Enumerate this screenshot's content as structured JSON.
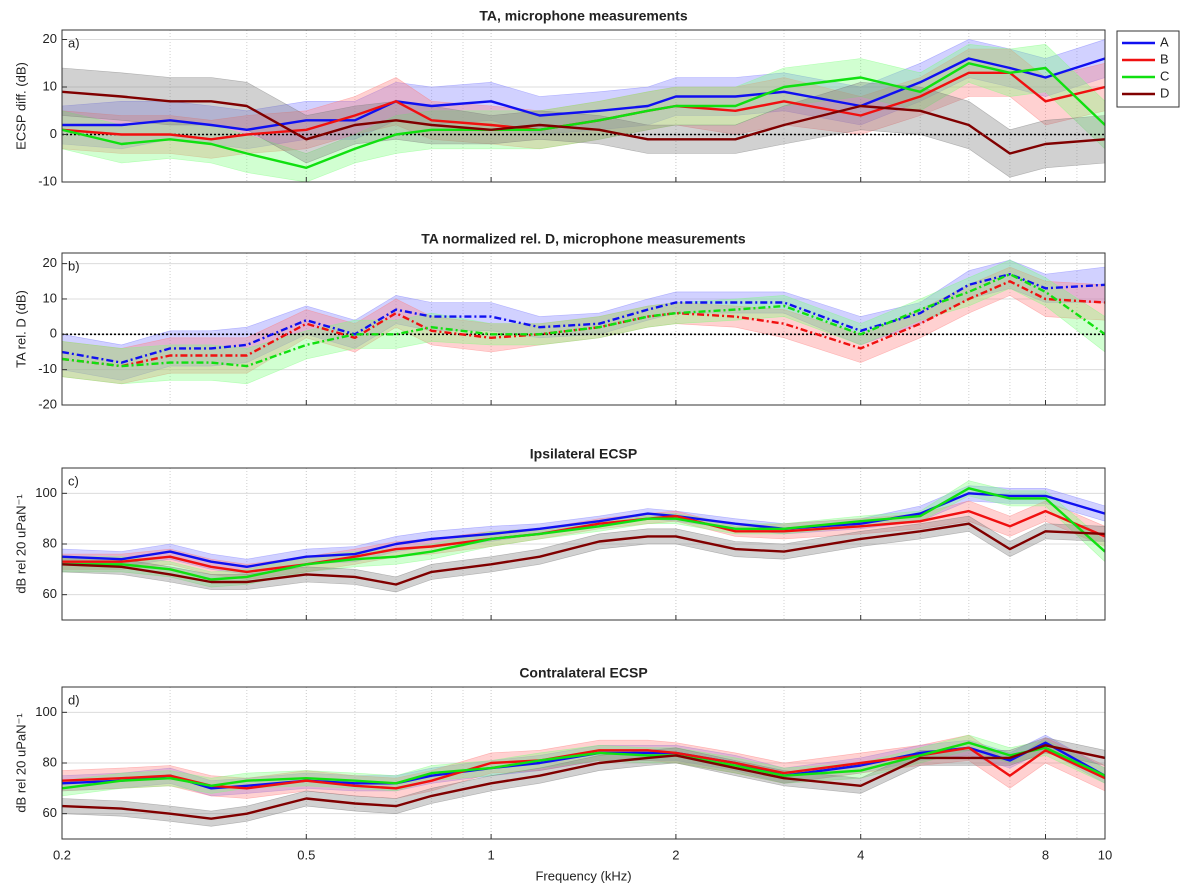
{
  "chart_data": [
    {
      "type": "line",
      "title": "TA, microphone measurements",
      "panel_label": "a)",
      "ylabel": "ECSP diff. (dB)",
      "log_x": true,
      "xlim": [
        0.2,
        10
      ],
      "xticks": [
        0.2,
        0.5,
        1,
        2,
        4,
        8,
        10
      ],
      "xminorticks": [
        0.3,
        0.4,
        0.6,
        0.7,
        0.8,
        0.9,
        3,
        5,
        6,
        7,
        9
      ],
      "ylim": [
        -10,
        22
      ],
      "yticks": [
        -10,
        0,
        10,
        20
      ],
      "grid": true,
      "zero_line": true,
      "line_style": "solid",
      "xtick_labels": false,
      "legend": "outside right",
      "x": [
        0.2,
        0.25,
        0.3,
        0.35,
        0.4,
        0.5,
        0.6,
        0.7,
        0.8,
        1,
        1.2,
        1.5,
        1.8,
        2,
        2.5,
        3,
        4,
        5,
        6,
        7,
        8,
        10
      ],
      "series": [
        {
          "name": "A",
          "color": "#1010f0",
          "band_color": "#7b7bff",
          "values": [
            2,
            2,
            3,
            2,
            1,
            3,
            3,
            7,
            6,
            7,
            4,
            5,
            6,
            8,
            8,
            9,
            6,
            11,
            16,
            14,
            12,
            16
          ],
          "errors": [
            4,
            5,
            4,
            4,
            4,
            4,
            4,
            4,
            4,
            4,
            4,
            4,
            4,
            4,
            4,
            4,
            4,
            4,
            4,
            4,
            4,
            4
          ]
        },
        {
          "name": "B",
          "color": "#f01010",
          "band_color": "#ff7b7b",
          "values": [
            1,
            0,
            0,
            -1,
            0,
            1,
            4,
            7,
            3,
            2,
            1,
            3,
            5,
            6,
            5,
            7,
            4,
            8,
            13,
            13,
            7,
            10
          ],
          "errors": [
            4,
            4,
            4,
            4,
            4,
            4,
            4,
            5,
            4,
            4,
            4,
            4,
            4,
            4,
            5,
            5,
            4,
            4,
            5,
            5,
            5,
            5
          ]
        },
        {
          "name": "C",
          "color": "#10e010",
          "band_color": "#7bff7b",
          "values": [
            1,
            -2,
            -1,
            -2,
            -4,
            -7,
            -3,
            0,
            1,
            1,
            1,
            3,
            5,
            6,
            6,
            10,
            12,
            9,
            15,
            13,
            14,
            2
          ],
          "errors": [
            4,
            4,
            4,
            4,
            4,
            3,
            3,
            4,
            4,
            4,
            4,
            4,
            4,
            4,
            4,
            4,
            4,
            4,
            4,
            5,
            5,
            5
          ]
        },
        {
          "name": "D",
          "color": "#800000",
          "band_color": "#7a7a7a",
          "values": [
            9,
            8,
            7,
            7,
            6,
            -1,
            2,
            3,
            2,
            1,
            2,
            1,
            -1,
            -1,
            -1,
            2,
            6,
            5,
            2,
            -4,
            -2,
            -1
          ],
          "errors": [
            5,
            5,
            5,
            5,
            5,
            5,
            4,
            4,
            4,
            3,
            3,
            3,
            3,
            3,
            3,
            4,
            5,
            5,
            5,
            5,
            5,
            5
          ]
        }
      ]
    },
    {
      "type": "line",
      "title": "TA normalized rel. D, microphone measurements",
      "panel_label": "b)",
      "ylabel": "TA rel. D (dB)",
      "log_x": true,
      "xlim": [
        0.2,
        10
      ],
      "xticks": [
        0.2,
        0.5,
        1,
        2,
        4,
        8,
        10
      ],
      "xminorticks": [
        0.3,
        0.4,
        0.6,
        0.7,
        0.8,
        0.9,
        3,
        5,
        6,
        7,
        9
      ],
      "ylim": [
        -20,
        23
      ],
      "yticks": [
        -20,
        -10,
        0,
        10,
        20
      ],
      "grid": true,
      "zero_line": true,
      "line_style": "dashed",
      "xtick_labels": false,
      "x": [
        0.2,
        0.25,
        0.3,
        0.35,
        0.4,
        0.5,
        0.6,
        0.7,
        0.8,
        1,
        1.2,
        1.5,
        1.8,
        2,
        2.5,
        3,
        4,
        5,
        6,
        7,
        8,
        10
      ],
      "series": [
        {
          "color": "#1010f0",
          "band_color": "#7b7bff",
          "values": [
            -5,
            -8,
            -4,
            -4,
            -3,
            4,
            0,
            7,
            5,
            5,
            2,
            3,
            7,
            9,
            9,
            9,
            1,
            6,
            14,
            17,
            13,
            14
          ],
          "errors": [
            5,
            5,
            5,
            5,
            5,
            4,
            4,
            4,
            4,
            4,
            3,
            3,
            3,
            3,
            3,
            3,
            4,
            3,
            4,
            4,
            4,
            5
          ]
        },
        {
          "color": "#f01010",
          "band_color": "#ff7b7b",
          "values": [
            -7,
            -9,
            -6,
            -6,
            -6,
            3,
            -1,
            6,
            1,
            -1,
            0,
            2,
            5,
            6,
            5,
            3,
            -4,
            3,
            10,
            15,
            10,
            9
          ],
          "errors": [
            5,
            5,
            5,
            5,
            5,
            4,
            4,
            4,
            4,
            4,
            3,
            3,
            3,
            3,
            3,
            4,
            4,
            4,
            4,
            4,
            5,
            5
          ]
        },
        {
          "color": "#10e010",
          "band_color": "#7bff7b",
          "values": [
            -7,
            -9,
            -8,
            -8,
            -9,
            -3,
            0,
            0,
            2,
            0,
            0,
            2,
            5,
            6,
            7,
            8,
            0,
            7,
            12,
            17,
            12,
            0
          ],
          "errors": [
            5,
            5,
            5,
            5,
            5,
            4,
            4,
            4,
            4,
            3,
            3,
            3,
            3,
            3,
            3,
            3,
            3,
            3,
            4,
            4,
            4,
            5
          ]
        }
      ]
    },
    {
      "type": "line",
      "title": "Ipsilateral ECSP",
      "panel_label": "c)",
      "ylabel": "dB rel 20 uPaN⁻¹",
      "log_x": true,
      "xlim": [
        0.2,
        10
      ],
      "xticks": [
        0.2,
        0.5,
        1,
        2,
        4,
        8,
        10
      ],
      "xminorticks": [
        0.3,
        0.4,
        0.6,
        0.7,
        0.8,
        0.9,
        3,
        5,
        6,
        7,
        9
      ],
      "ylim": [
        50,
        110
      ],
      "yticks": [
        60,
        80,
        100
      ],
      "grid": true,
      "zero_line": false,
      "line_style": "solid",
      "xtick_labels": false,
      "x": [
        0.2,
        0.25,
        0.3,
        0.35,
        0.4,
        0.5,
        0.6,
        0.7,
        0.8,
        1,
        1.2,
        1.5,
        1.8,
        2,
        2.5,
        3,
        4,
        5,
        6,
        7,
        8,
        10
      ],
      "series": [
        {
          "color": "#1010f0",
          "band_color": "#7b7bff",
          "values": [
            75,
            74,
            77,
            73,
            71,
            75,
            76,
            80,
            82,
            84,
            86,
            89,
            92,
            91,
            88,
            86,
            88,
            92,
            100,
            99,
            99,
            92
          ],
          "errors": [
            3,
            3,
            3,
            3,
            3,
            3,
            3,
            3,
            3,
            3,
            2,
            2,
            2,
            2,
            2,
            2,
            2,
            3,
            3,
            3,
            3,
            3
          ]
        },
        {
          "color": "#f01010",
          "band_color": "#ff7b7b",
          "values": [
            73,
            73,
            75,
            71,
            69,
            72,
            75,
            78,
            79,
            82,
            84,
            88,
            90,
            91,
            85,
            85,
            87,
            89,
            93,
            87,
            93,
            83
          ],
          "errors": [
            3,
            3,
            3,
            3,
            3,
            3,
            3,
            3,
            3,
            3,
            2,
            2,
            2,
            2,
            2,
            3,
            3,
            3,
            4,
            4,
            4,
            4
          ]
        },
        {
          "color": "#10e010",
          "band_color": "#7bff7b",
          "values": [
            72,
            72,
            70,
            66,
            67,
            72,
            74,
            75,
            77,
            82,
            84,
            87,
            90,
            90,
            86,
            86,
            89,
            91,
            102,
            98,
            98,
            77
          ],
          "errors": [
            3,
            3,
            3,
            3,
            3,
            3,
            3,
            3,
            3,
            3,
            2,
            2,
            2,
            2,
            2,
            2,
            2,
            2,
            3,
            3,
            3,
            4
          ]
        },
        {
          "color": "#800000",
          "band_color": "#7a7a7a",
          "values": [
            72,
            71,
            68,
            65,
            65,
            68,
            67,
            64,
            69,
            72,
            75,
            81,
            83,
            83,
            78,
            77,
            82,
            85,
            88,
            78,
            85,
            84
          ],
          "errors": [
            3,
            3,
            3,
            3,
            3,
            3,
            3,
            3,
            3,
            3,
            3,
            3,
            3,
            3,
            3,
            3,
            3,
            3,
            3,
            3,
            3,
            3
          ]
        }
      ]
    },
    {
      "type": "line",
      "title": "Contralateral ECSP",
      "panel_label": "d)",
      "ylabel": "dB rel 20 uPaN⁻¹",
      "xlabel": "Frequency (kHz)",
      "log_x": true,
      "xlim": [
        0.2,
        10
      ],
      "xticks": [
        0.2,
        0.5,
        1,
        2,
        4,
        8,
        10
      ],
      "xminorticks": [
        0.3,
        0.4,
        0.6,
        0.7,
        0.8,
        0.9,
        3,
        5,
        6,
        7,
        9
      ],
      "ylim": [
        50,
        110
      ],
      "yticks": [
        60,
        80,
        100
      ],
      "grid": true,
      "zero_line": false,
      "line_style": "solid",
      "xtick_labels": true,
      "x": [
        0.2,
        0.25,
        0.3,
        0.35,
        0.4,
        0.5,
        0.6,
        0.7,
        0.8,
        1,
        1.2,
        1.5,
        1.8,
        2,
        2.5,
        3,
        4,
        5,
        6,
        7,
        8,
        10
      ],
      "series": [
        {
          "color": "#1010f0",
          "band_color": "#7b7bff",
          "values": [
            72,
            73,
            75,
            70,
            71,
            73,
            72,
            72,
            75,
            78,
            80,
            84,
            84,
            84,
            80,
            75,
            79,
            84,
            86,
            81,
            88,
            75
          ],
          "errors": [
            3,
            3,
            3,
            3,
            3,
            3,
            3,
            3,
            3,
            3,
            3,
            3,
            3,
            3,
            3,
            3,
            3,
            3,
            3,
            3,
            3,
            3
          ]
        },
        {
          "color": "#f01010",
          "band_color": "#ff7b7b",
          "values": [
            73,
            74,
            75,
            71,
            70,
            73,
            71,
            70,
            73,
            80,
            81,
            85,
            85,
            84,
            80,
            76,
            80,
            83,
            86,
            75,
            85,
            74
          ],
          "errors": [
            4,
            4,
            4,
            4,
            4,
            4,
            4,
            4,
            4,
            4,
            4,
            4,
            4,
            4,
            4,
            4,
            4,
            4,
            5,
            5,
            5,
            5
          ]
        },
        {
          "color": "#10e010",
          "band_color": "#7bff7b",
          "values": [
            70,
            73,
            74,
            71,
            73,
            74,
            73,
            72,
            76,
            78,
            81,
            84,
            83,
            83,
            79,
            75,
            77,
            83,
            88,
            83,
            86,
            75
          ],
          "errors": [
            3,
            3,
            3,
            3,
            3,
            3,
            3,
            3,
            3,
            3,
            3,
            3,
            3,
            3,
            3,
            3,
            3,
            3,
            3,
            3,
            3,
            3
          ]
        },
        {
          "color": "#800000",
          "band_color": "#7a7a7a",
          "values": [
            63,
            62,
            60,
            58,
            60,
            66,
            64,
            63,
            67,
            72,
            75,
            80,
            82,
            83,
            78,
            74,
            71,
            82,
            82,
            82,
            87,
            82
          ],
          "errors": [
            3,
            3,
            3,
            3,
            3,
            3,
            3,
            3,
            3,
            3,
            3,
            3,
            3,
            3,
            3,
            3,
            3,
            3,
            3,
            3,
            3,
            3
          ]
        }
      ]
    }
  ]
}
